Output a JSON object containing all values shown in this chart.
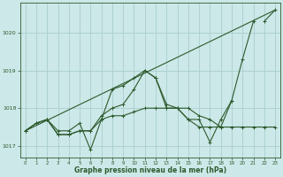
{
  "title": "Graphe pression niveau de la mer (hPa)",
  "bg_color": "#cce8e8",
  "grid_color": "#aacece",
  "line_color": "#2d5a2d",
  "xlim": [
    -0.5,
    23.5
  ],
  "ylim": [
    1016.7,
    1020.8
  ],
  "xticks": [
    0,
    1,
    2,
    3,
    4,
    5,
    6,
    7,
    8,
    9,
    10,
    11,
    12,
    13,
    14,
    15,
    16,
    17,
    18,
    19,
    20,
    21,
    22,
    23
  ],
  "yticks": [
    1017,
    1018,
    1019,
    1020
  ],
  "series": [
    [
      1017.4,
      1017.6,
      1017.7,
      1017.4,
      1017.4,
      1017.6,
      1016.9,
      1017.7,
      1018.5,
      1018.6,
      1018.8,
      1019.0,
      1018.8,
      1018.0,
      1018.0,
      1017.7,
      1017.7,
      1017.1,
      1017.7,
      1018.2,
      null,
      null,
      null,
      null
    ],
    [
      1017.4,
      1017.6,
      1017.7,
      1017.3,
      1017.3,
      1017.4,
      1017.4,
      1017.7,
      1017.8,
      1017.8,
      1017.9,
      1018.0,
      1018.0,
      1018.0,
      1018.0,
      1018.0,
      1017.8,
      1017.7,
      1017.5,
      1017.5,
      1017.5,
      1017.5,
      1017.5,
      1017.5
    ],
    [
      1017.4,
      1017.6,
      1017.7,
      1017.3,
      1017.3,
      1017.4,
      1017.4,
      1017.8,
      1018.0,
      1018.1,
      1018.5,
      1019.0,
      1018.8,
      1018.1,
      1018.0,
      1017.7,
      1017.5,
      1017.5,
      1017.5,
      1018.2,
      1019.3,
      1020.3,
      null,
      null
    ],
    [
      1017.4,
      null,
      null,
      null,
      null,
      null,
      null,
      null,
      null,
      null,
      null,
      null,
      null,
      null,
      null,
      null,
      null,
      null,
      null,
      null,
      null,
      null,
      1020.3,
      1020.6
    ]
  ]
}
